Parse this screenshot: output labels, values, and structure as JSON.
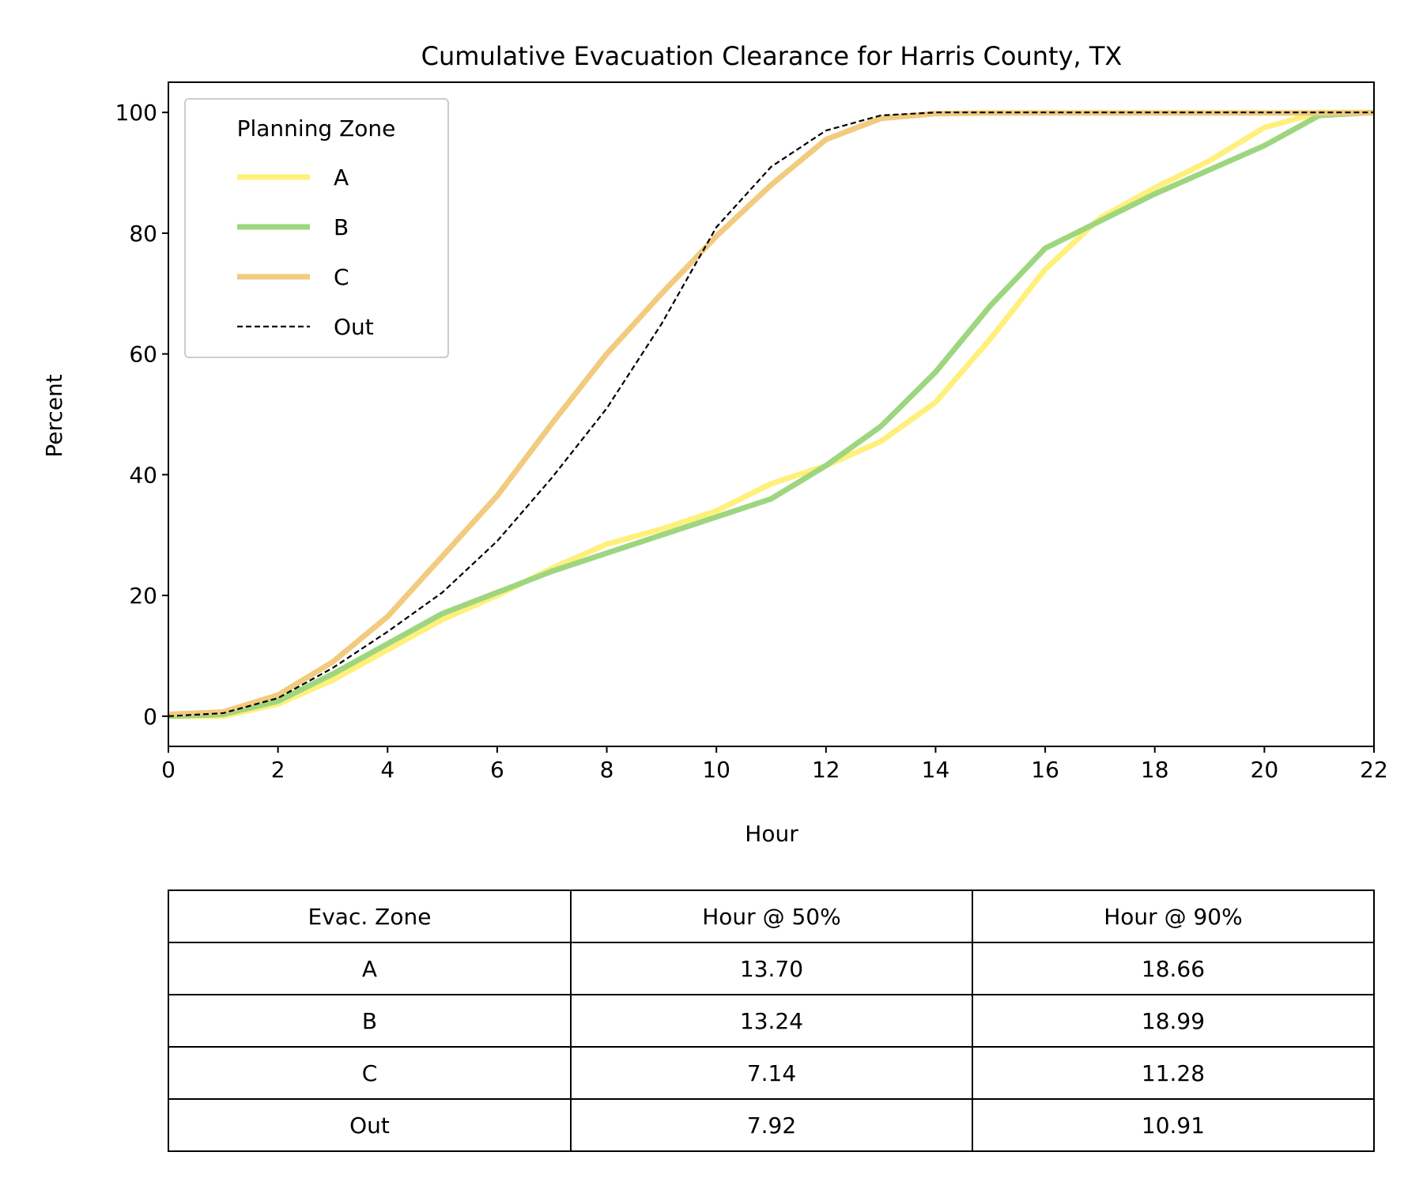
{
  "chart_data": {
    "type": "line",
    "title": "Cumulative Evacuation Clearance for Harris County, TX",
    "xlabel": "Hour",
    "ylabel": "Percent",
    "xlim": [
      0,
      22
    ],
    "ylim": [
      -5,
      105
    ],
    "xticks": [
      0,
      2,
      4,
      6,
      8,
      10,
      12,
      14,
      16,
      18,
      20,
      22
    ],
    "yticks": [
      0,
      20,
      40,
      60,
      80,
      100
    ],
    "grid": false,
    "legend": {
      "title": "Planning Zone",
      "placement": "top-left"
    },
    "x": [
      0,
      1,
      2,
      3,
      4,
      5,
      6,
      7,
      8,
      9,
      10,
      11,
      12,
      13,
      14,
      15,
      16,
      17,
      18,
      19,
      20,
      21,
      22
    ],
    "series": [
      {
        "name": "A",
        "color": "#fff07c",
        "style": "solid",
        "values": [
          0,
          0,
          2,
          6,
          11,
          16,
          20,
          24.5,
          28.5,
          31,
          34,
          38.5,
          41.5,
          45.5,
          52,
          62.5,
          74,
          82.5,
          87.5,
          92,
          97.5,
          100,
          100
        ]
      },
      {
        "name": "B",
        "color": "#9ed67f",
        "style": "solid",
        "values": [
          0,
          0.3,
          2.5,
          7,
          12,
          17,
          20.5,
          24,
          27,
          30,
          33,
          36,
          41.5,
          48,
          57,
          68,
          77.5,
          82,
          86.5,
          90.5,
          94.5,
          99.5,
          100
        ]
      },
      {
        "name": "C",
        "color": "#f2cb7f",
        "style": "solid",
        "values": [
          0.3,
          0.7,
          3.5,
          9,
          16.5,
          26.5,
          36.5,
          48.5,
          60,
          70,
          79.5,
          88,
          95.5,
          99,
          99.8,
          99.9,
          99.9,
          99.9,
          99.9,
          99.9,
          99.9,
          99.9,
          99.9
        ]
      },
      {
        "name": "Out",
        "color": "#000000",
        "style": "dashed",
        "values": [
          0,
          0.5,
          3,
          8,
          14,
          20.5,
          29,
          39.5,
          51,
          65,
          81,
          91,
          97,
          99.5,
          100,
          100,
          100,
          100,
          100,
          100,
          100,
          100,
          100
        ]
      }
    ]
  },
  "table": {
    "headers": [
      "Evac. Zone",
      "Hour @ 50%",
      "Hour @ 90%"
    ],
    "rows": [
      [
        "A",
        "13.70",
        "18.66"
      ],
      [
        "B",
        "13.24",
        "18.99"
      ],
      [
        "C",
        "7.14",
        "11.28"
      ],
      [
        "Out",
        "7.92",
        "10.91"
      ]
    ]
  }
}
